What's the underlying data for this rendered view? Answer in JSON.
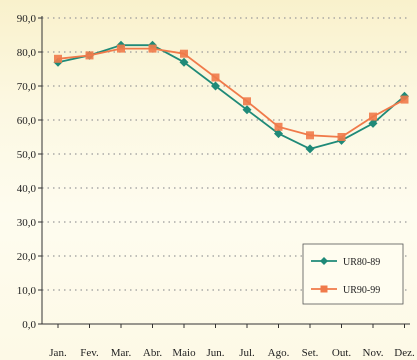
{
  "colors": {
    "background": "#fbf6d8",
    "gridline": "#9a9a9a",
    "axis": "#333333",
    "series_ur80_89": "#1f8a78",
    "series_ur90_99": "#f07a4a"
  },
  "chart_data": {
    "type": "line",
    "title": "",
    "xlabel": "",
    "ylabel": "",
    "categories": [
      "Jan.",
      "Fev.",
      "Mar.",
      "Abr.",
      "Maio",
      "Jun.",
      "Jul.",
      "Ago.",
      "Set.",
      "Out.",
      "Nov.",
      "Dez."
    ],
    "ylim": [
      0,
      90
    ],
    "yticks": [
      "0,0",
      "10,0",
      "20,0",
      "30,0",
      "40,0",
      "50,0",
      "60,0",
      "70,0",
      "80,0",
      "90,0"
    ],
    "ytick_values": [
      0,
      10,
      20,
      30,
      40,
      50,
      60,
      70,
      80,
      90
    ],
    "grid": "horizontal-dotted",
    "legend_position": "bottom-right",
    "series": [
      {
        "name": "UR80-89",
        "marker": "diamond",
        "color": "#1f8a78",
        "values": [
          77.0,
          79.0,
          82.0,
          82.0,
          77.0,
          70.0,
          63.0,
          56.0,
          51.5,
          54.0,
          59.0,
          67.0
        ]
      },
      {
        "name": "UR90-99",
        "marker": "square",
        "color": "#f07a4a",
        "values": [
          78.0,
          79.0,
          81.0,
          81.0,
          79.5,
          72.5,
          65.5,
          58.0,
          55.5,
          55.0,
          61.0,
          66.0
        ]
      }
    ]
  }
}
